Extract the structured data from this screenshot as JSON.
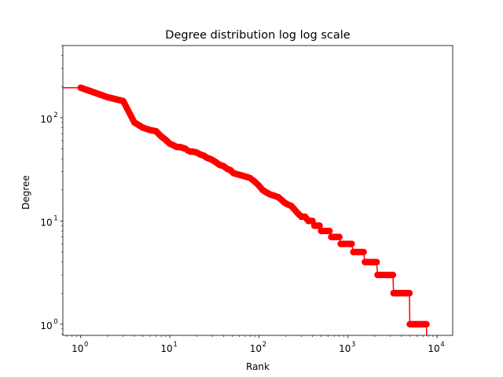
{
  "chart_data": {
    "type": "line",
    "title": "Degree distribution log log scale",
    "xlabel": "Rank",
    "ylabel": "Degree",
    "xscale": "log",
    "yscale": "log",
    "xlim": [
      0.63,
      15000
    ],
    "ylim": [
      0.78,
      500
    ],
    "grid": false,
    "legend": "none",
    "colors": {
      "series": "#ff0000",
      "axes": "#000000",
      "background": "#ffffff"
    },
    "x_ticks": [
      {
        "value": 1,
        "base": "10",
        "exp": "0"
      },
      {
        "value": 10,
        "base": "10",
        "exp": "1"
      },
      {
        "value": 100,
        "base": "10",
        "exp": "2"
      },
      {
        "value": 1000,
        "base": "10",
        "exp": "3"
      },
      {
        "value": 10000,
        "base": "10",
        "exp": "4"
      }
    ],
    "y_ticks": [
      {
        "value": 1,
        "base": "10",
        "exp": "0"
      },
      {
        "value": 10,
        "base": "10",
        "exp": "1"
      },
      {
        "value": 100,
        "base": "10",
        "exp": "2"
      }
    ],
    "series": [
      {
        "marker": "circle",
        "points": [
          [
            0.63,
            195
          ],
          [
            1,
            195
          ],
          [
            2,
            158
          ],
          [
            3,
            145
          ],
          [
            4,
            90
          ],
          [
            5,
            80
          ],
          [
            6,
            76
          ],
          [
            7,
            74
          ],
          [
            8,
            66
          ],
          [
            9,
            61
          ],
          [
            10,
            56
          ],
          [
            11,
            54
          ],
          [
            12,
            52
          ],
          [
            13,
            52
          ],
          [
            14,
            51
          ],
          [
            15,
            50
          ],
          [
            16,
            48
          ],
          [
            17,
            47
          ],
          [
            18,
            47
          ],
          [
            20,
            46
          ],
          [
            22,
            44
          ],
          [
            24,
            43
          ],
          [
            26,
            41
          ],
          [
            28,
            40
          ],
          [
            30,
            39
          ],
          [
            33,
            37
          ],
          [
            36,
            35
          ],
          [
            40,
            34
          ],
          [
            44,
            32
          ],
          [
            48,
            31
          ],
          [
            52,
            29
          ],
          [
            56,
            28.5
          ],
          [
            60,
            28
          ],
          [
            65,
            27.5
          ],
          [
            70,
            27
          ],
          [
            75,
            26.5
          ],
          [
            80,
            26
          ],
          [
            85,
            25
          ],
          [
            90,
            24
          ],
          [
            95,
            23
          ],
          [
            100,
            22
          ],
          [
            110,
            20
          ],
          [
            120,
            19
          ],
          [
            135,
            18
          ],
          [
            150,
            17.5
          ],
          [
            165,
            17
          ],
          [
            180,
            16
          ],
          [
            195,
            15
          ],
          [
            210,
            14.5
          ],
          [
            230,
            14
          ],
          [
            250,
            13
          ],
          [
            270,
            12
          ],
          [
            300,
            11
          ],
          [
            330,
            11
          ],
          [
            360,
            10
          ],
          [
            400,
            10
          ],
          [
            420,
            9
          ],
          [
            480,
            9
          ],
          [
            500,
            8
          ],
          [
            620,
            8
          ],
          [
            650,
            7
          ],
          [
            800,
            7
          ],
          [
            830,
            6
          ],
          [
            1100,
            6
          ],
          [
            1150,
            5
          ],
          [
            1500,
            5
          ],
          [
            1550,
            4
          ],
          [
            2100,
            4
          ],
          [
            2150,
            3
          ],
          [
            3200,
            3
          ],
          [
            3250,
            2
          ],
          [
            4900,
            2
          ],
          [
            4950,
            1
          ],
          [
            7600,
            1
          ],
          [
            7650,
            0.78
          ]
        ]
      }
    ]
  }
}
